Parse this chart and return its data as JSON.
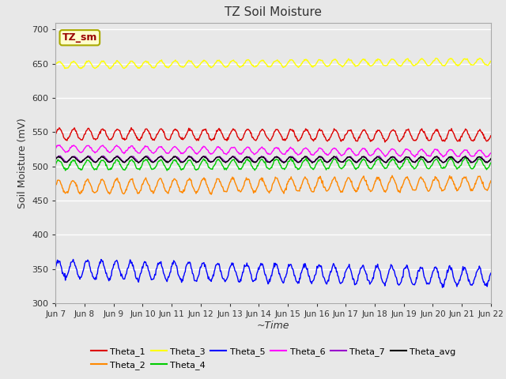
{
  "title": "TZ Soil Moisture",
  "xlabel": "~Time",
  "ylabel": "Soil Moisture (mV)",
  "ylim": [
    300,
    710
  ],
  "yticks": [
    300,
    350,
    400,
    450,
    500,
    550,
    600,
    650,
    700
  ],
  "x_labels": [
    "Jun 7",
    "Jun 8",
    "Jun 9",
    "Jun 10",
    "Jun 11",
    "Jun 12",
    "Jun 13",
    "Jun 14",
    "Jun 15",
    "Jun 16",
    "Jun 17",
    "Jun 18",
    "Jun 19",
    "Jun 20",
    "Jun 21",
    "Jun 22"
  ],
  "n_days": 15,
  "points_per_day": 48,
  "series": [
    {
      "name": "Theta_1",
      "color": "#dd0000",
      "base": 547,
      "amp": 8,
      "freq": 2.0,
      "phase": 0.0,
      "trend": -2
    },
    {
      "name": "Theta_2",
      "color": "#ff8800",
      "base": 470,
      "amp": 10,
      "freq": 2.0,
      "phase": 0.3,
      "trend": 5
    },
    {
      "name": "Theta_3",
      "color": "#ffff00",
      "base": 648,
      "amp": 5,
      "freq": 2.0,
      "phase": 0.1,
      "trend": 5
    },
    {
      "name": "Theta_4",
      "color": "#00cc00",
      "base": 502,
      "amp": 7,
      "freq": 2.0,
      "phase": 0.2,
      "trend": 2
    },
    {
      "name": "Theta_5",
      "color": "#0000ff",
      "base": 350,
      "amp": 13,
      "freq": 2.0,
      "phase": 0.5,
      "trend": -12
    },
    {
      "name": "Theta_6",
      "color": "#ff00ff",
      "base": 526,
      "amp": 5,
      "freq": 2.0,
      "phase": 0.15,
      "trend": -7
    },
    {
      "name": "Theta_7",
      "color": "#9900cc",
      "base": 511,
      "amp": 4,
      "freq": 2.0,
      "phase": 0.0,
      "trend": -1
    },
    {
      "name": "Theta_avg",
      "color": "#000000",
      "base": 510,
      "amp": 4,
      "freq": 2.0,
      "phase": 0.25,
      "trend": 0
    }
  ],
  "figsize": [
    6.4,
    4.8
  ],
  "dpi": 100,
  "background_color": "#e8e8e8",
  "plot_bg_color": "#e8e8e8",
  "grid_color": "#ffffff",
  "label_box_color": "#ffffcc",
  "label_box_text": "TZ_sm",
  "label_box_text_color": "#990000",
  "label_box_edge_color": "#aaaa00"
}
